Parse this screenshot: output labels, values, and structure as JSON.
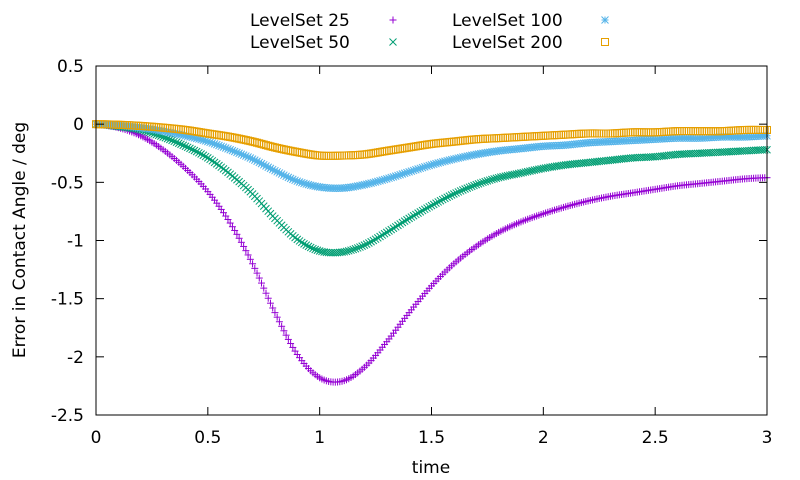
{
  "chart_data": {
    "type": "scatter",
    "title": "",
    "xlabel": "time",
    "ylabel": "Error in Contact Angle / deg",
    "xlim": [
      0,
      3
    ],
    "ylim": [
      -2.5,
      0.5
    ],
    "xticks": [
      0,
      0.5,
      1,
      1.5,
      2,
      2.5,
      3
    ],
    "xtick_labels": [
      "0",
      "0.5",
      "1",
      "1.5",
      "2",
      "2.5",
      "3"
    ],
    "yticks": [
      0.5,
      0,
      -0.5,
      -1,
      -1.5,
      -2,
      -2.5
    ],
    "ytick_labels": [
      "0.5",
      "0",
      "-0.5",
      "-1",
      "-1.5",
      "-2",
      "-2.5"
    ],
    "grid": false,
    "legend_position": "top-center",
    "x": [
      0,
      0.1,
      0.2,
      0.3,
      0.4,
      0.5,
      0.6,
      0.7,
      0.8,
      0.9,
      1.0,
      1.1,
      1.2,
      1.3,
      1.4,
      1.5,
      1.6,
      1.7,
      1.8,
      1.9,
      2.0,
      2.1,
      2.2,
      2.3,
      2.4,
      2.5,
      2.6,
      2.7,
      2.8,
      2.9,
      3.0
    ],
    "series": [
      {
        "name": "LevelSet 25",
        "marker": "plus",
        "color": "#9400D3",
        "values": [
          0,
          -0.03,
          -0.1,
          -0.22,
          -0.38,
          -0.58,
          -0.85,
          -1.2,
          -1.62,
          -1.98,
          -2.18,
          -2.21,
          -2.09,
          -1.87,
          -1.62,
          -1.39,
          -1.2,
          -1.05,
          -0.93,
          -0.84,
          -0.77,
          -0.71,
          -0.66,
          -0.62,
          -0.59,
          -0.56,
          -0.53,
          -0.51,
          -0.49,
          -0.47,
          -0.46
        ]
      },
      {
        "name": "LevelSet 50",
        "marker": "cross",
        "color": "#009E73",
        "values": [
          0,
          -0.02,
          -0.05,
          -0.11,
          -0.19,
          -0.29,
          -0.43,
          -0.6,
          -0.81,
          -0.99,
          -1.09,
          -1.1,
          -1.04,
          -0.93,
          -0.81,
          -0.7,
          -0.6,
          -0.52,
          -0.46,
          -0.42,
          -0.38,
          -0.35,
          -0.33,
          -0.31,
          -0.29,
          -0.28,
          -0.26,
          -0.25,
          -0.24,
          -0.23,
          -0.22
        ]
      },
      {
        "name": "LevelSet 100",
        "marker": "star",
        "color": "#56B4E9",
        "values": [
          0,
          -0.01,
          -0.03,
          -0.06,
          -0.1,
          -0.15,
          -0.22,
          -0.3,
          -0.4,
          -0.49,
          -0.54,
          -0.55,
          -0.52,
          -0.47,
          -0.41,
          -0.35,
          -0.3,
          -0.26,
          -0.23,
          -0.21,
          -0.19,
          -0.18,
          -0.16,
          -0.15,
          -0.14,
          -0.13,
          -0.12,
          -0.12,
          -0.11,
          -0.11,
          -0.1
        ]
      },
      {
        "name": "LevelSet 200",
        "marker": "square",
        "color": "#E69F00",
        "values": [
          0,
          -0.005,
          -0.015,
          -0.03,
          -0.05,
          -0.08,
          -0.11,
          -0.15,
          -0.2,
          -0.24,
          -0.27,
          -0.27,
          -0.26,
          -0.23,
          -0.2,
          -0.17,
          -0.15,
          -0.13,
          -0.12,
          -0.11,
          -0.1,
          -0.09,
          -0.08,
          -0.08,
          -0.07,
          -0.07,
          -0.06,
          -0.06,
          -0.06,
          -0.05,
          -0.05
        ]
      }
    ]
  }
}
